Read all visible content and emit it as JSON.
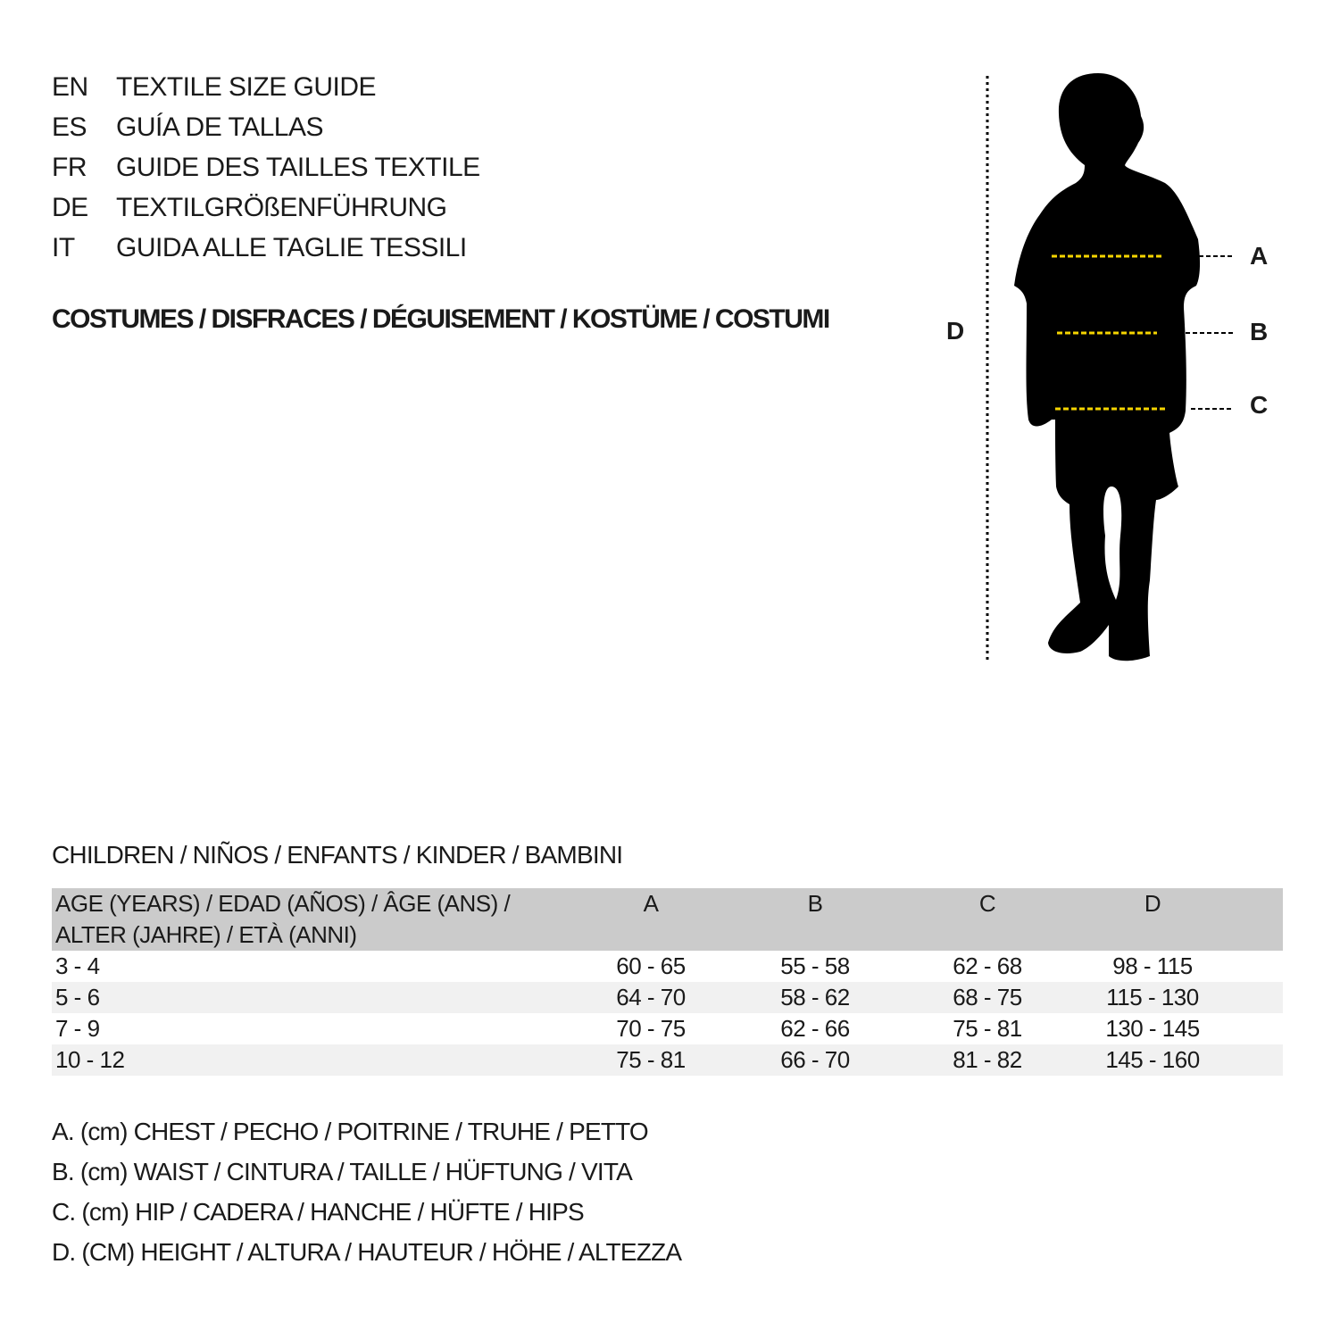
{
  "languages": [
    {
      "code": "EN",
      "title": "TEXTILE SIZE GUIDE"
    },
    {
      "code": "ES",
      "title": "GUÍA DE TALLAS"
    },
    {
      "code": "FR",
      "title": "GUIDE DES TAILLES TEXTILE"
    },
    {
      "code": "DE",
      "title": "TEXTILGRÖßENFÜHRUNG"
    },
    {
      "code": "IT",
      "title": "GUIDA ALLE TAGLIE TESSILI"
    }
  ],
  "category": "COSTUMES / DISFRACES / DÉGUISEMENT / KOSTÜME / COSTUMI",
  "figure": {
    "labels": {
      "a": "A",
      "b": "B",
      "c": "C",
      "d": "D"
    },
    "colors": {
      "silhouette": "#000000",
      "measure_lines": "#f5d400"
    }
  },
  "table": {
    "group_title": "CHILDREN / NIÑOS / ENFANTS / KINDER / BAMBINI",
    "header": {
      "age_line1": "AGE (YEARS) / EDAD (AÑOS) / ÂGE (ANS) /",
      "age_line2": "ALTER (JAHRE) / ETÀ (ANNI)",
      "a": "A",
      "b": "B",
      "c": "C",
      "d": "D"
    },
    "rows": [
      {
        "age": "3 - 4",
        "a": "60 - 65",
        "b": "55 - 58",
        "c": "62 - 68",
        "d": "98 - 115"
      },
      {
        "age": "5 - 6",
        "a": "64 - 70",
        "b": "58 - 62",
        "c": "68 - 75",
        "d": "115 - 130"
      },
      {
        "age": "7 - 9",
        "a": "70 - 75",
        "b": "62 - 66",
        "c": "75 - 81",
        "d": "130 - 145"
      },
      {
        "age": "10 - 12",
        "a": "75 - 81",
        "b": "66 - 70",
        "c": "81 - 82",
        "d": "145 - 160"
      }
    ]
  },
  "legend": [
    "A. (cm) CHEST / PECHO / POITRINE / TRUHE / PETTO",
    "B. (cm) WAIST / CINTURA / TAILLE / HÜFTUNG / VITA",
    "C. (cm) HIP / CADERA / HANCHE / HÜFTE / HIPS",
    "D. (CM) HEIGHT / ALTURA / HAUTEUR / HÖHE / ALTEZZA"
  ]
}
